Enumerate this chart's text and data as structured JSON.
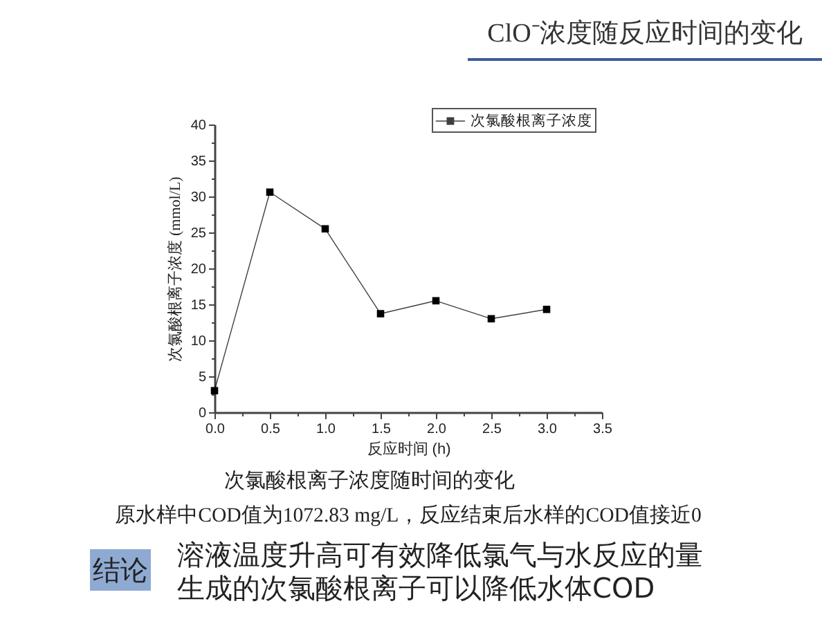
{
  "chart_data": {
    "type": "line",
    "title": "ClO⁻浓度随反应时间的变化",
    "subtitle": "次氯酸根离子浓度随时间的变化",
    "xlabel": "反应时间 (h)",
    "ylabel": "次氯酸根离子浓度 (mmol/L)",
    "x": [
      0,
      0.5,
      1,
      1.5,
      2,
      2.5,
      3
    ],
    "series": [
      {
        "name": "次氯酸根离子浓度",
        "color": "#000000",
        "values": [
          3.0,
          30.6,
          25.5,
          13.7,
          15.5,
          13.0,
          14.3
        ]
      }
    ],
    "xlim": [
      0,
      3.5
    ],
    "ylim": [
      0,
      40
    ],
    "xticks": [
      {
        "value": 0,
        "label": "0.0"
      },
      {
        "value": 0.25,
        "label": null
      },
      0.5,
      {
        "value": 0.75,
        "label": null
      },
      {
        "value": 1,
        "label": "1.0"
      },
      {
        "value": 1.25,
        "label": null
      },
      1.5,
      {
        "value": 1.75,
        "label": null
      },
      {
        "value": 2,
        "label": "2.0"
      },
      {
        "value": 2.25,
        "label": null
      },
      2.5,
      {
        "value": 2.75,
        "label": null
      },
      {
        "value": 3,
        "label": "3.0"
      },
      {
        "value": 3.25,
        "label": null
      },
      3.5
    ],
    "yticks": [
      0,
      {
        "value": 2.5,
        "label": null
      },
      5,
      {
        "value": 7.5,
        "label": null
      },
      10,
      {
        "value": 12.5,
        "label": null
      },
      15,
      {
        "value": 17.5,
        "label": null
      },
      20,
      {
        "value": 22.5,
        "label": null
      },
      25,
      {
        "value": 27.5,
        "label": null
      },
      30,
      {
        "value": 32.5,
        "label": null
      },
      35,
      {
        "value": 37.5,
        "label": null
      },
      40
    ],
    "grid": false,
    "legend": "top right",
    "marker": "square",
    "line_style": "solid",
    "annotations": [
      "原水样中COD值为1072.83 mg/L，反应结束后水样的COD值接近0",
      "结论",
      "溶液温度升高可有效降低氯气与水反应的量",
      "生成的次氯酸根离子可以降低水体COD"
    ]
  }
}
